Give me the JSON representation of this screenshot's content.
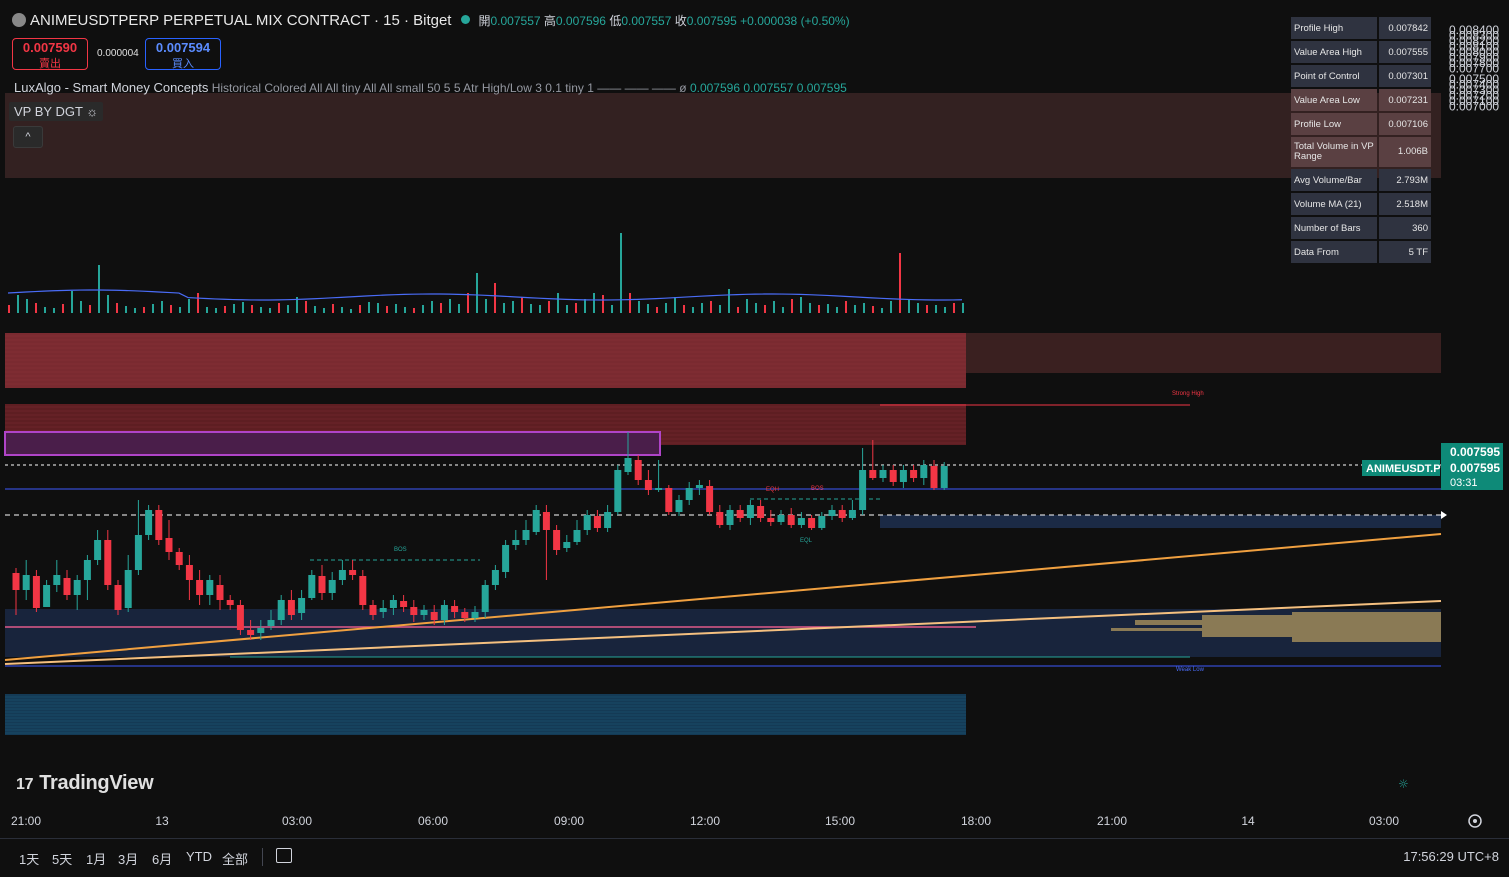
{
  "header": {
    "title": "ANIMEUSDTPERP PERPETUAL MIX CONTRACT · 15 · Bitget",
    "open_label": "開",
    "open": "0.007557",
    "high_label": "高",
    "high": "0.007596",
    "low_label": "低",
    "low": "0.007557",
    "close_label": "收",
    "close": "0.007595",
    "change": "+0.000038 (+0.50%)"
  },
  "trade": {
    "sell_price": "0.007590",
    "sell_label": "賣出",
    "spread": "0.000004",
    "buy_price": "0.007594",
    "buy_label": "買入"
  },
  "indicator": {
    "name": "LuxAlgo - Smart Money Concepts",
    "params": "Historical Colored All All tiny All All small 50 5 5 Atr High/Low 3 0.1 tiny 1",
    "phi": "ø",
    "v1": "0.007596",
    "v2": "0.007557",
    "v3": "0.007595"
  },
  "vp_label": "VP BY DGT",
  "collapse_icon": "chevron-up-icon",
  "vp_table": [
    {
      "k": "Profile High",
      "v": "0.007842"
    },
    {
      "k": "Value Area High",
      "v": "0.007555"
    },
    {
      "k": "Point of Control",
      "v": "0.007301"
    },
    {
      "k": "Value Area Low",
      "v": "0.007231",
      "hl": true
    },
    {
      "k": "Profile Low",
      "v": "0.007106",
      "hl": true
    },
    {
      "k": "Total Volume in VP Range",
      "v": "1.006B",
      "hl": true
    },
    {
      "k": "Avg Volume/Bar",
      "v": "2.793M"
    },
    {
      "k": "Volume MA (21)",
      "v": "2.518M"
    },
    {
      "k": "Number of Bars",
      "v": "360"
    },
    {
      "k": "Data From",
      "v": "5 TF"
    }
  ],
  "price_axis": [
    "0.008400",
    "0.008300",
    "0.008200",
    "0.008100",
    "0.008000",
    "0.007900",
    "0.007800",
    "0.007700",
    "0.007500",
    "0.007400",
    "0.007300",
    "0.007200",
    "0.007100",
    "0.007000"
  ],
  "price_tags": {
    "p1": "0.007595",
    "p2": "0.007595",
    "countdown": "03:31",
    "symbol": "ANIMEUSDT.P"
  },
  "time_axis": [
    "21:00",
    "13",
    "03:00",
    "06:00",
    "09:00",
    "12:00",
    "15:00",
    "18:00",
    "21:00",
    "14",
    "03:00"
  ],
  "annotations": {
    "strong_high": "Strong High",
    "weak_low": "Weak Low",
    "bos": "BOS",
    "eqh": "EQH",
    "eql": "EQL"
  },
  "brand": "TradingView",
  "ranges": [
    "1天",
    "5天",
    "1月",
    "3月",
    "6月",
    "YTD",
    "全部"
  ],
  "clock": "17:56:29 UTC+8",
  "colors": {
    "up": "#26a69a",
    "down": "#f23645",
    "bg": "#0f0f0f"
  }
}
